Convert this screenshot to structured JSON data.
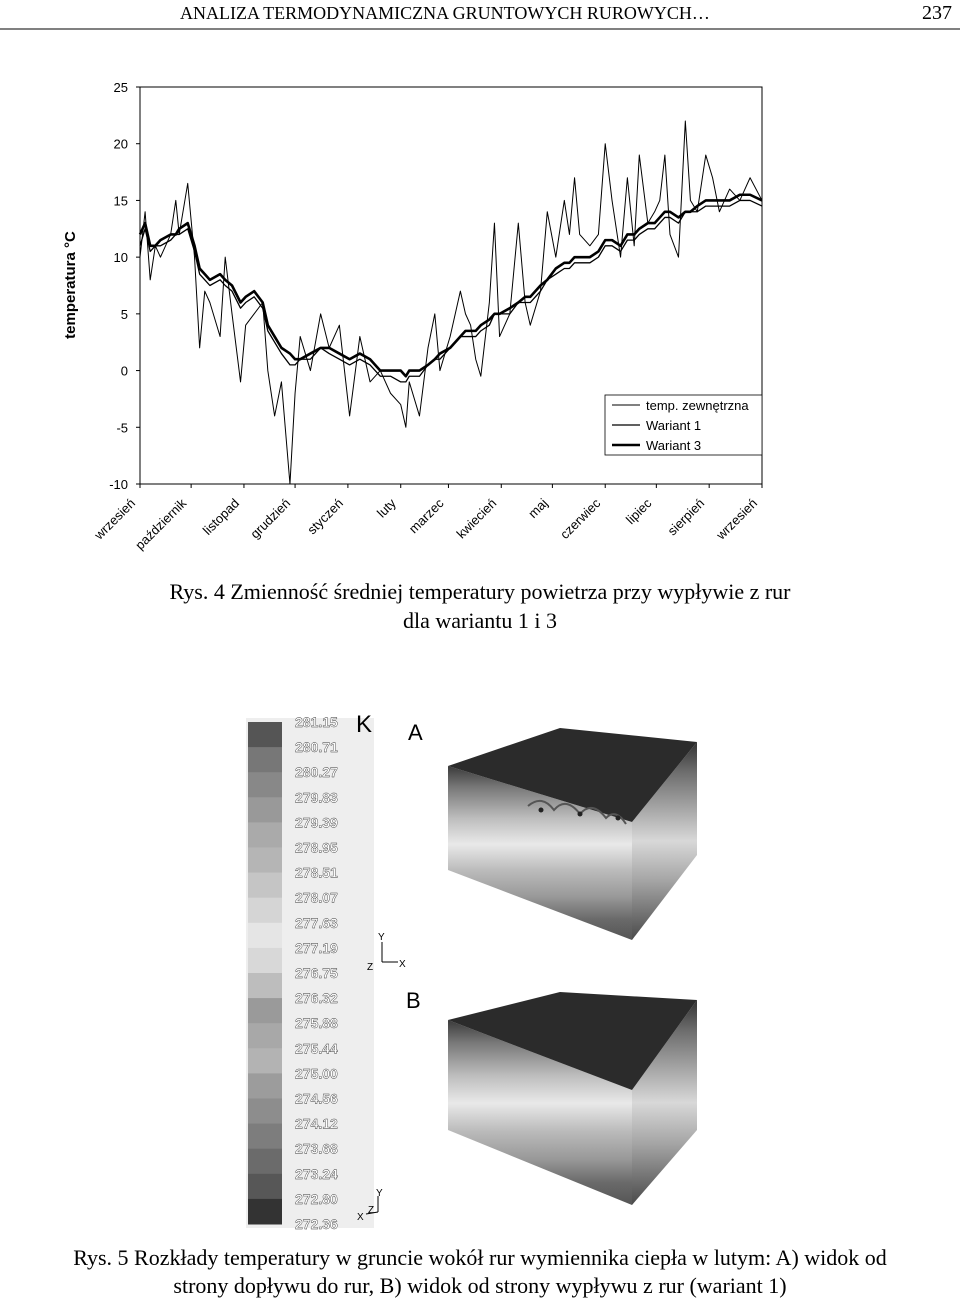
{
  "header": {
    "title": "ANALIZA TERMODYNAMICZNA GRUNTOWYCH RUROWYCH…",
    "page_number": "237"
  },
  "chart_data": {
    "type": "line",
    "ylabel": "temperatura °C",
    "x": [
      0,
      3,
      6,
      9,
      12,
      18,
      21,
      23,
      28,
      32,
      35,
      38,
      41,
      47,
      50,
      54,
      59,
      62,
      67,
      72,
      75,
      79,
      83,
      88,
      91,
      94,
      100,
      106,
      111,
      117,
      123,
      129,
      135,
      141,
      147,
      153,
      156,
      158,
      164,
      169,
      173,
      176,
      182,
      188,
      191,
      194,
      197,
      200,
      205,
      208,
      211,
      217,
      222,
      226,
      229,
      235,
      239,
      244,
      249,
      252,
      255,
      258,
      264,
      269,
      273,
      277,
      282,
      286,
      290,
      293,
      298,
      302,
      305,
      308,
      311,
      316,
      320,
      323,
      327,
      332,
      336,
      340,
      346,
      352,
      358,
      365
    ],
    "xlim": [
      0,
      365
    ],
    "xticks": [
      {
        "value": 0,
        "label": "wrzesień"
      },
      {
        "value": 30,
        "label": "październik"
      },
      {
        "value": 61,
        "label": "listopad"
      },
      {
        "value": 91,
        "label": "grudzień"
      },
      {
        "value": 122,
        "label": "styczeń"
      },
      {
        "value": 153,
        "label": "luty"
      },
      {
        "value": 181,
        "label": "marzec"
      },
      {
        "value": 212,
        "label": "kwiecień"
      },
      {
        "value": 242,
        "label": "maj"
      },
      {
        "value": 273,
        "label": "czerwiec"
      },
      {
        "value": 303,
        "label": "lipiec"
      },
      {
        "value": 334,
        "label": "sierpień"
      },
      {
        "value": 365,
        "label": "wrzesień"
      }
    ],
    "ylim": [
      -10,
      25
    ],
    "yticks": [
      -10,
      -5,
      0,
      5,
      10,
      15,
      20,
      25
    ],
    "grid": false,
    "legend": "lower-right",
    "series": [
      {
        "name": "temp. zewnętrzna",
        "color": "#000000",
        "line_width": 1,
        "values": [
          10,
          14,
          8,
          11,
          10,
          12,
          15,
          12,
          16.5,
          10,
          2,
          7,
          6,
          3,
          10,
          5,
          -1,
          4,
          5,
          6,
          0,
          -4,
          -1,
          -10,
          -2,
          3,
          0,
          5,
          2,
          4,
          -4,
          3,
          -1,
          0,
          -2,
          -3,
          -5,
          -1,
          -4,
          2,
          5,
          0,
          3,
          7,
          5,
          4,
          1,
          -0.5,
          6,
          13,
          3,
          5,
          13,
          6,
          4,
          7,
          14,
          10,
          15,
          12,
          17,
          12,
          11,
          12,
          20,
          15,
          10,
          17,
          11,
          19,
          13,
          14,
          15,
          19,
          12,
          10,
          22,
          15,
          14,
          19,
          17,
          14,
          16,
          15,
          17,
          15
        ]
      },
      {
        "name": "Wariant 1",
        "color": "#000000",
        "line_width": 1.3,
        "values": [
          11,
          12.5,
          10.5,
          11,
          11,
          11.5,
          12,
          12,
          12.5,
          10.5,
          8.5,
          8,
          7.5,
          8,
          7.5,
          7,
          5.5,
          6,
          6.5,
          5.5,
          3.5,
          2.5,
          1.5,
          0.5,
          0.5,
          1,
          1,
          2,
          1.5,
          1,
          0.5,
          1,
          0.5,
          -0.5,
          -0.5,
          -1,
          -1,
          -0.5,
          -0.5,
          0.5,
          1,
          1,
          2,
          3,
          3,
          3,
          3,
          3.5,
          4,
          5,
          5,
          5,
          6,
          6,
          6,
          7,
          8,
          8.5,
          9,
          9,
          9.5,
          9.5,
          9.5,
          10,
          11,
          11,
          10.5,
          11.5,
          11.5,
          12,
          12.5,
          12.5,
          13,
          13.5,
          13.5,
          13,
          14,
          14,
          14,
          14.5,
          14.5,
          14.5,
          14.5,
          15,
          15,
          14.5
        ]
      },
      {
        "name": "Wariant 3",
        "color": "#000000",
        "line_width": 2.6,
        "values": [
          12,
          13,
          11,
          11,
          11.5,
          12,
          12,
          12.5,
          13,
          11,
          9,
          8.5,
          8,
          8.5,
          8,
          7.5,
          6,
          6.5,
          7,
          6,
          4,
          3,
          2,
          1.5,
          1,
          1,
          1.5,
          2,
          2,
          1.5,
          1,
          1.5,
          1,
          0,
          0,
          0,
          -0.5,
          0,
          0,
          0.5,
          1,
          1.5,
          2,
          3,
          3.5,
          3.5,
          3.5,
          4,
          4.5,
          5,
          5,
          5.5,
          6,
          6.5,
          6.5,
          7.5,
          8,
          9,
          9.5,
          9.5,
          10,
          10,
          10,
          10.5,
          11.5,
          11.5,
          11,
          12,
          12,
          12.5,
          13,
          13,
          13.5,
          14,
          14,
          13.5,
          14,
          14,
          14.5,
          15,
          15,
          15,
          15,
          15.5,
          15.5,
          15
        ]
      }
    ]
  },
  "figure4_caption": [
    "Rys. 4 Zmienność średniej temperatury powietrza przy wypływie z rur",
    "dla wariantu 1 i 3"
  ],
  "figure5": {
    "scale_labels": [
      "281.15",
      "280.71",
      "280.27",
      "279.83",
      "279.39",
      "278.95",
      "278.51",
      "278.07",
      "277.63",
      "277.19",
      "276.75",
      "276.32",
      "275.88",
      "275.44",
      "275.00",
      "274.56",
      "274.12",
      "273.68",
      "273.24",
      "272.80",
      "272.36"
    ],
    "scale_letter": "K",
    "view_a": "A",
    "view_b": "B",
    "axes_labels": [
      "Y",
      "Z",
      "X"
    ],
    "caption": [
      "Rys. 5 Rozkłady temperatury w gruncie wokół rur wymiennika ciepła w lutym: A) widok od",
      "strony dopływu do rur, B) widok od strony wypływu z rur (wariant 1)"
    ]
  }
}
